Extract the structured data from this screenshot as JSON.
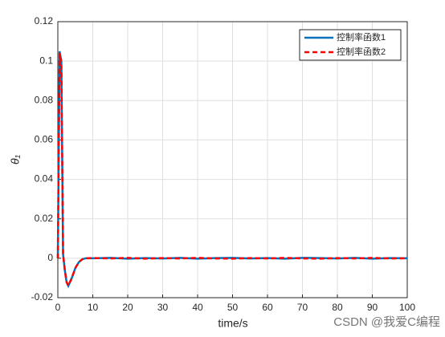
{
  "chart_data": {
    "type": "line",
    "x_label": "time/s",
    "y_label": "θ₁",
    "x": [
      0,
      0.5,
      1,
      1.5,
      2,
      2.5,
      3,
      4,
      5,
      6,
      7,
      8,
      10,
      15,
      20,
      25,
      30,
      35,
      40,
      45,
      50,
      55,
      60,
      65,
      70,
      75,
      80,
      85,
      90,
      95,
      100
    ],
    "series": [
      {
        "name": "控制率函数1",
        "color": "#0072bd",
        "style": "solid",
        "values": [
          0,
          0.105,
          0.1,
          0.002,
          -0.006,
          -0.012,
          -0.014,
          -0.01,
          -0.005,
          -0.002,
          -0.0005,
          0,
          0,
          0.0002,
          -0.0002,
          0.0001,
          -0.0001,
          0.0002,
          -0.0002,
          0.0001,
          0.0002,
          -0.0001,
          0.0001,
          -0.0002,
          0.0002,
          0.0001,
          -0.0001,
          0.0002,
          -0.0002,
          0.0001,
          0
        ]
      },
      {
        "name": "控制率函数2",
        "color": "#ff0000",
        "style": "dashed",
        "values": [
          0,
          0.104,
          0.099,
          0.002,
          -0.006,
          -0.012,
          -0.014,
          -0.01,
          -0.005,
          -0.002,
          -0.0005,
          0,
          0.0001,
          -0.0001,
          0.0002,
          -0.0002,
          0.0001,
          -0.0001,
          0.0002,
          -0.0001,
          -0.0002,
          0.0001,
          -0.0001,
          0.0002,
          -0.0001,
          -0.0002,
          0.0001,
          -0.0001,
          0.0002,
          -0.0001,
          0
        ]
      }
    ],
    "xlim": [
      0,
      100
    ],
    "xticks": [
      0,
      10,
      20,
      30,
      40,
      50,
      60,
      70,
      80,
      90,
      100
    ],
    "ylim": [
      -0.02,
      0.12
    ],
    "yticks": [
      -0.02,
      0,
      0.02,
      0.04,
      0.06,
      0.08,
      0.1,
      0.12
    ],
    "grid": true,
    "legend_position": "upper-right",
    "watermark": "CSDN @我爱C编程"
  }
}
